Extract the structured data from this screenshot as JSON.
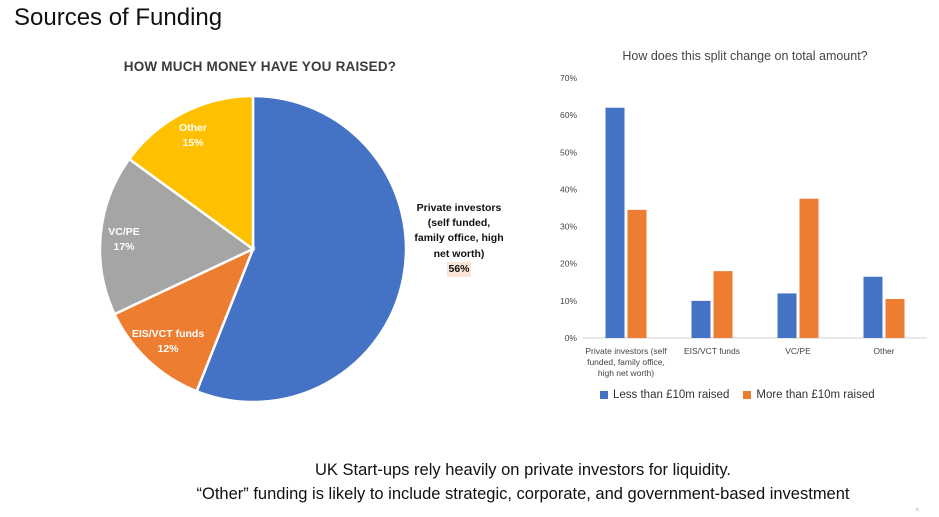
{
  "page": {
    "title": "Sources of Funding",
    "footer_line1": "UK Start-ups rely heavily on private investors for liquidity.",
    "footer_line2": "“Other” funding is likely to include strategic, corporate, and government-based investment",
    "corner_mark": "ᶜ"
  },
  "colors": {
    "blue": "#4472C4",
    "orange": "#ED7D31",
    "gray": "#A5A5A5",
    "yellow": "#FFC000",
    "private_pct_highlight": "#FBE5D6"
  },
  "chart_data": [
    {
      "type": "pie",
      "title": "HOW MUCH MONEY HAVE YOU RAISED?",
      "slices": [
        {
          "label": "Private investors (self funded, family office, high net worth)",
          "label_lines": [
            "Private investors",
            "(self funded,",
            "family office, high",
            "net worth)"
          ],
          "value": 56,
          "pct_label": "56%",
          "color": "#4472C4"
        },
        {
          "label": "EIS/VCT funds",
          "label_lines": [
            "EIS/VCT funds"
          ],
          "value": 12,
          "pct_label": "12%",
          "color": "#ED7D31"
        },
        {
          "label": "VC/PE",
          "label_lines": [
            "VC/PE"
          ],
          "value": 17,
          "pct_label": "17%",
          "color": "#A5A5A5"
        },
        {
          "label": "Other",
          "label_lines": [
            "Other"
          ],
          "value": 15,
          "pct_label": "15%",
          "color": "#FFC000"
        }
      ]
    },
    {
      "type": "bar",
      "title": "How does this split change on total amount?",
      "categories": [
        "Private investors (self funded, family office, high net worth)",
        "EIS/VCT funds",
        "VC/PE",
        "Other"
      ],
      "category_lines": [
        [
          "Private investors (self",
          "funded, family office,",
          "high net worth)"
        ],
        [
          "EIS/VCT funds"
        ],
        [
          "VC/PE"
        ],
        [
          "Other"
        ]
      ],
      "series": [
        {
          "name": "Less than £10m raised",
          "color": "#4472C4",
          "values": [
            62,
            10,
            12,
            16.5
          ]
        },
        {
          "name": "More than £10m raised",
          "color": "#ED7D31",
          "values": [
            34.5,
            18,
            37.5,
            10.5
          ]
        }
      ],
      "ylim": [
        0,
        70
      ],
      "yticks": [
        "0%",
        "10%",
        "20%",
        "30%",
        "40%",
        "50%",
        "60%",
        "70%"
      ],
      "ytick_values": [
        0,
        10,
        20,
        30,
        40,
        50,
        60,
        70
      ],
      "grid": false,
      "legend": "bottom",
      "xlabel": "",
      "ylabel": ""
    }
  ]
}
